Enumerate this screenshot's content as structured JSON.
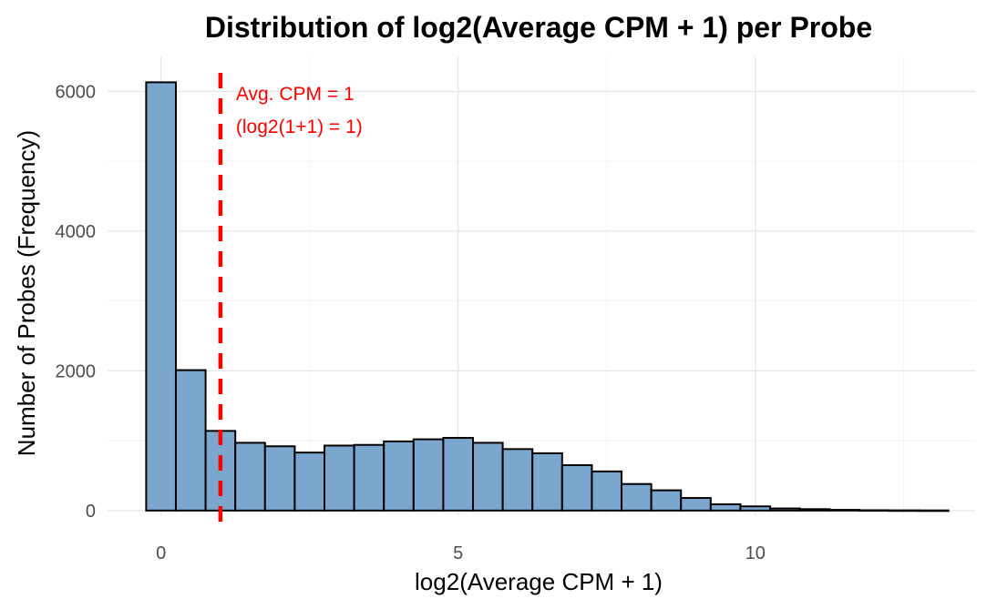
{
  "chart_data": {
    "type": "bar",
    "title": "Distribution of log2(Average CPM + 1) per Probe",
    "xlabel": "log2(Average CPM + 1)",
    "ylabel": "Number of Probes (Frequency)",
    "xlim": [
      -0.9,
      13.7
    ],
    "ylim": [
      -80,
      6500
    ],
    "x_ticks": [
      0,
      5,
      10
    ],
    "y_ticks": [
      0,
      2000,
      4000,
      6000
    ],
    "bin_width": 0.5,
    "bins": [
      {
        "x0": -0.25,
        "x1": 0.25,
        "value": 6130
      },
      {
        "x0": 0.25,
        "x1": 0.75,
        "value": 2010
      },
      {
        "x0": 0.75,
        "x1": 1.25,
        "value": 1140
      },
      {
        "x0": 1.25,
        "x1": 1.75,
        "value": 970
      },
      {
        "x0": 1.75,
        "x1": 2.25,
        "value": 920
      },
      {
        "x0": 2.25,
        "x1": 2.75,
        "value": 830
      },
      {
        "x0": 2.75,
        "x1": 3.25,
        "value": 930
      },
      {
        "x0": 3.25,
        "x1": 3.75,
        "value": 940
      },
      {
        "x0": 3.75,
        "x1": 4.25,
        "value": 990
      },
      {
        "x0": 4.25,
        "x1": 4.75,
        "value": 1020
      },
      {
        "x0": 4.75,
        "x1": 5.25,
        "value": 1040
      },
      {
        "x0": 5.25,
        "x1": 5.75,
        "value": 970
      },
      {
        "x0": 5.75,
        "x1": 6.25,
        "value": 880
      },
      {
        "x0": 6.25,
        "x1": 6.75,
        "value": 820
      },
      {
        "x0": 6.75,
        "x1": 7.25,
        "value": 650
      },
      {
        "x0": 7.25,
        "x1": 7.75,
        "value": 560
      },
      {
        "x0": 7.75,
        "x1": 8.25,
        "value": 380
      },
      {
        "x0": 8.25,
        "x1": 8.75,
        "value": 290
      },
      {
        "x0": 8.75,
        "x1": 9.25,
        "value": 180
      },
      {
        "x0": 9.25,
        "x1": 9.75,
        "value": 90
      },
      {
        "x0": 9.75,
        "x1": 10.25,
        "value": 60
      },
      {
        "x0": 10.25,
        "x1": 10.75,
        "value": 30
      },
      {
        "x0": 10.75,
        "x1": 11.25,
        "value": 20
      },
      {
        "x0": 11.25,
        "x1": 11.75,
        "value": 10
      },
      {
        "x0": 11.75,
        "x1": 12.25,
        "value": 5
      },
      {
        "x0": 12.25,
        "x1": 12.75,
        "value": 3
      },
      {
        "x0": 12.75,
        "x1": 13.25,
        "value": 2
      }
    ],
    "reference_line": {
      "x": 1,
      "color": "#ff0000",
      "style": "dashed"
    },
    "annotation": {
      "lines": [
        "Avg. CPM = 1",
        "(log2(1+1) = 1)"
      ],
      "color": "#ff0000"
    },
    "bar_fill": "#7ba6cd",
    "bar_outline": "#000000",
    "grid": true,
    "legend": "none"
  }
}
